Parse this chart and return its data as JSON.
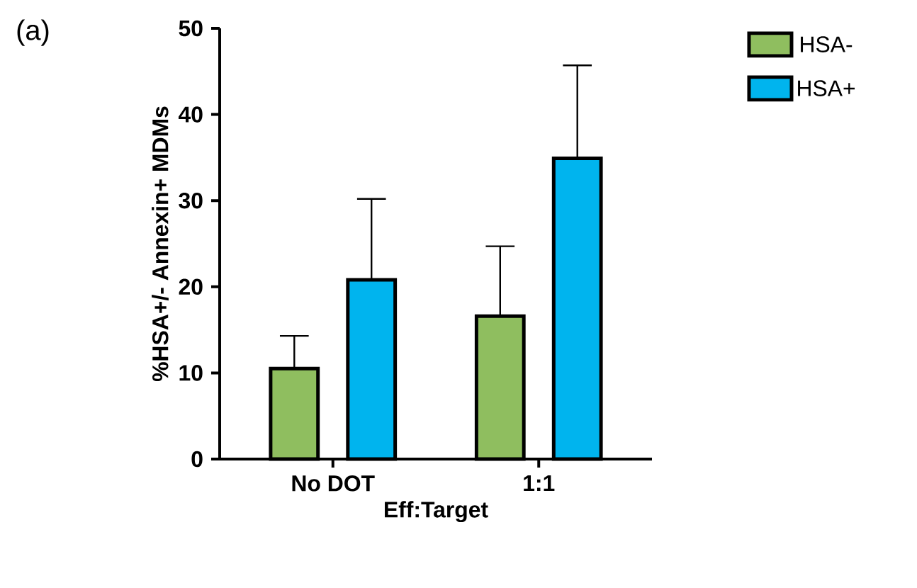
{
  "chart_data": {
    "type": "bar",
    "xlabel": "Eff:Target",
    "ylabel": "%HSA+/- Annexin+ MDMs",
    "categories": [
      "No DOT",
      "1:1"
    ],
    "series": [
      {
        "name": "HSA-",
        "color": "#8fbe5f",
        "values": [
          10.5,
          16.6
        ],
        "errors": [
          [
            10.5,
            14.3
          ],
          [
            16.6,
            24.7
          ]
        ]
      },
      {
        "name": "HSA+",
        "color": "#00b4ee",
        "values": [
          20.8,
          34.9
        ],
        "errors": [
          [
            20.8,
            30.2
          ],
          [
            34.9,
            45.7
          ]
        ]
      }
    ],
    "ylim": [
      0,
      50
    ],
    "yticks": [
      0,
      10,
      20,
      30,
      40,
      50
    ],
    "legend": "top right",
    "annotations": [
      "(a)"
    ]
  }
}
